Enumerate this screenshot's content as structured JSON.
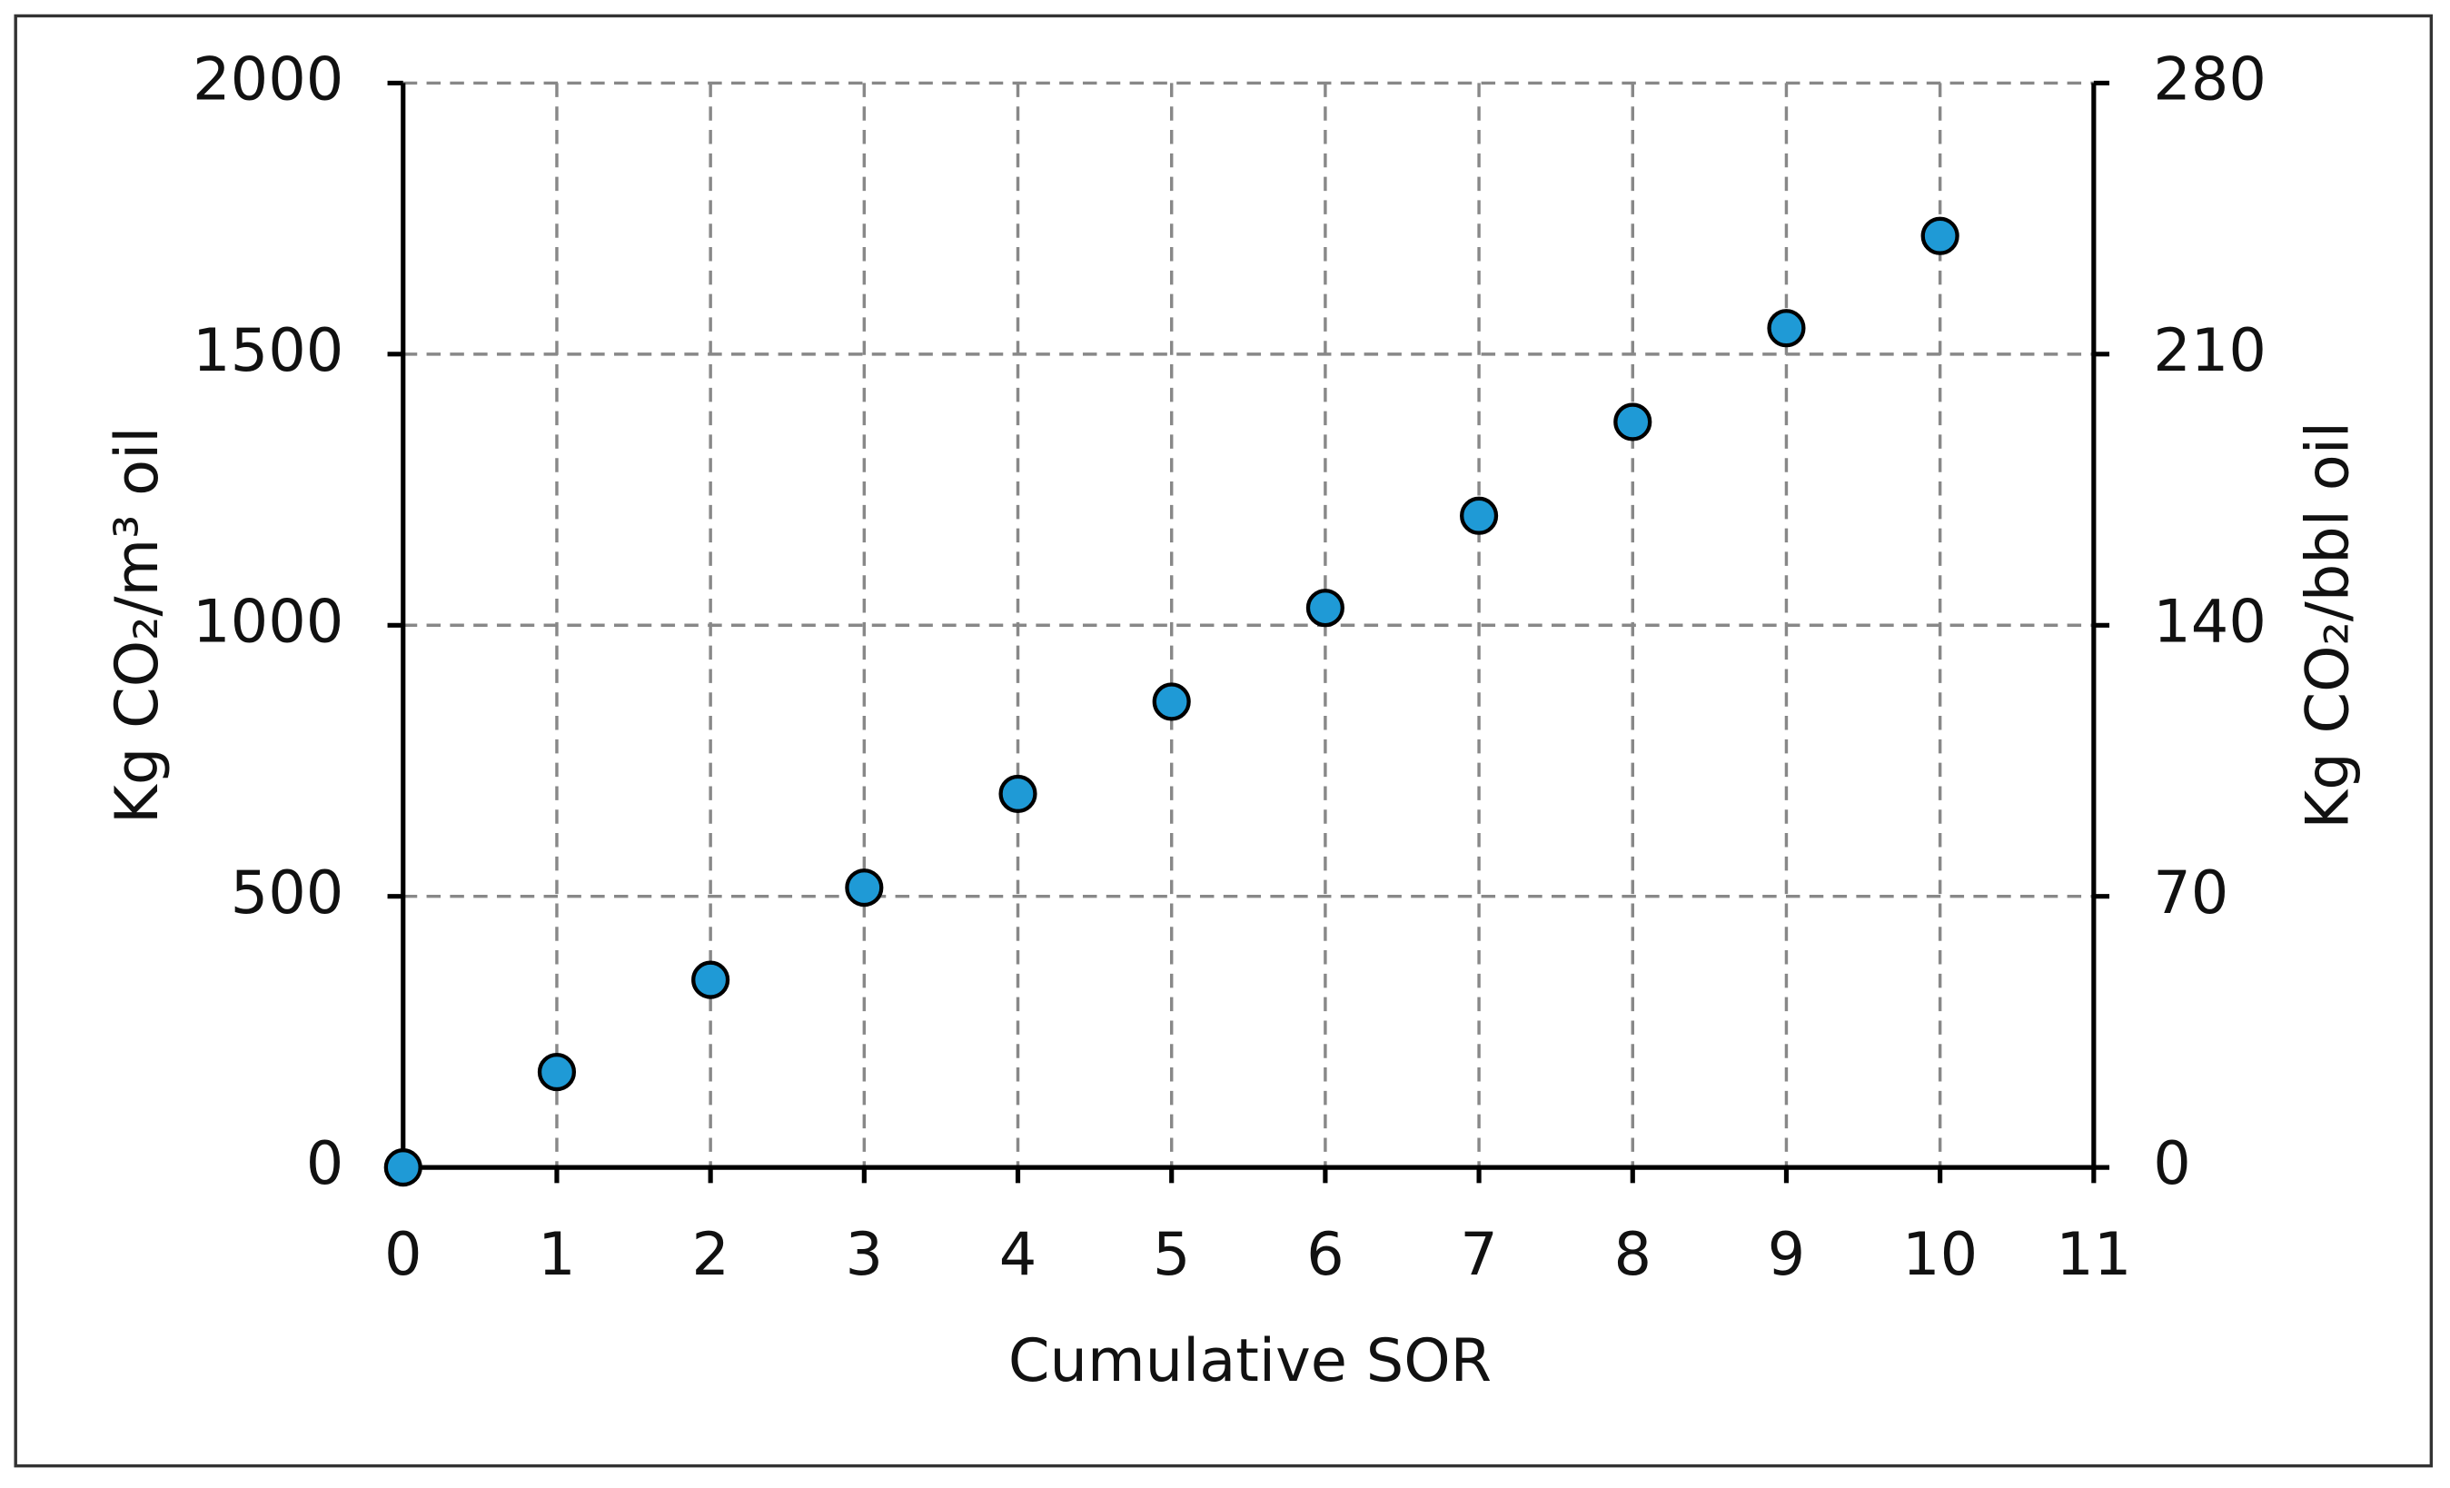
{
  "chart_data": {
    "type": "scatter",
    "x_label": "Cumulative SOR",
    "y_label": "Kg CO₂/m³ oil",
    "y2_label": "Kg CO₂/bbl oil",
    "x": [
      0,
      1,
      2,
      3,
      4,
      5,
      6,
      7,
      8,
      9,
      10
    ],
    "values": [
      0,
      176,
      346,
      516,
      689,
      859,
      1032,
      1202,
      1375,
      1548,
      1718
    ],
    "color": "#1f9ad6",
    "xlim": [
      0,
      11
    ],
    "xticks": [
      0,
      1,
      2,
      3,
      4,
      5,
      6,
      7,
      8,
      9,
      10,
      11
    ],
    "ylim": [
      0,
      2000
    ],
    "yticks": [
      0,
      500,
      1000,
      1500,
      2000
    ],
    "y2lim": [
      0,
      280
    ],
    "y2ticks": [
      0,
      70,
      140,
      210,
      280
    ],
    "grid": true
  }
}
